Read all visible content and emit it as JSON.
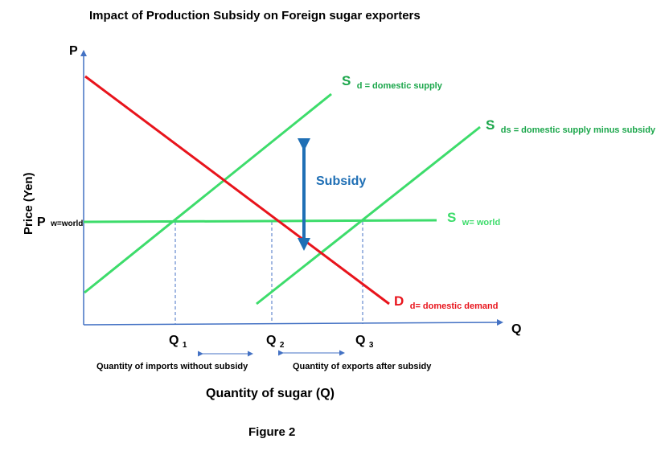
{
  "title": "Impact of Production Subsidy on Foreign sugar exporters",
  "axes": {
    "y_label": "P",
    "x_label": "Q",
    "y_title": "Price (Yen)",
    "x_title": "Quantity of sugar (Q)"
  },
  "curves": {
    "domestic_supply": {
      "symbol": "S",
      "subscript": "d = domestic supply",
      "color": "#3ddc6b",
      "label_color": "#1aa64a"
    },
    "subsidized_supply": {
      "symbol": "S",
      "subscript": "ds = domestic supply minus subsidy",
      "color": "#3ddc6b",
      "label_color": "#1aa64a"
    },
    "world_supply": {
      "symbol": "S",
      "subscript": "w= world",
      "color": "#3ddc6b",
      "label_color": "#3ddc6b"
    },
    "domestic_demand": {
      "symbol": "D",
      "subscript": "d= domestic demand",
      "color": "#e8141c",
      "label_color": "#e8141c"
    }
  },
  "price_level": {
    "symbol": "P",
    "subscript": "w=world"
  },
  "quantities": {
    "q1": {
      "symbol": "Q",
      "subscript": "1"
    },
    "q2": {
      "symbol": "Q",
      "subscript": "2"
    },
    "q3": {
      "symbol": "Q",
      "subscript": "3"
    }
  },
  "subsidy": {
    "label": "Subsidy",
    "color": "#1f6fb5"
  },
  "ranges": {
    "imports": "Quantity of imports without subsidy",
    "exports": "Quantity of exports after subsidy"
  },
  "colors": {
    "axis": "#4472c4",
    "guide": "#4472c4",
    "text": "#000000"
  },
  "caption": "Figure 2"
}
